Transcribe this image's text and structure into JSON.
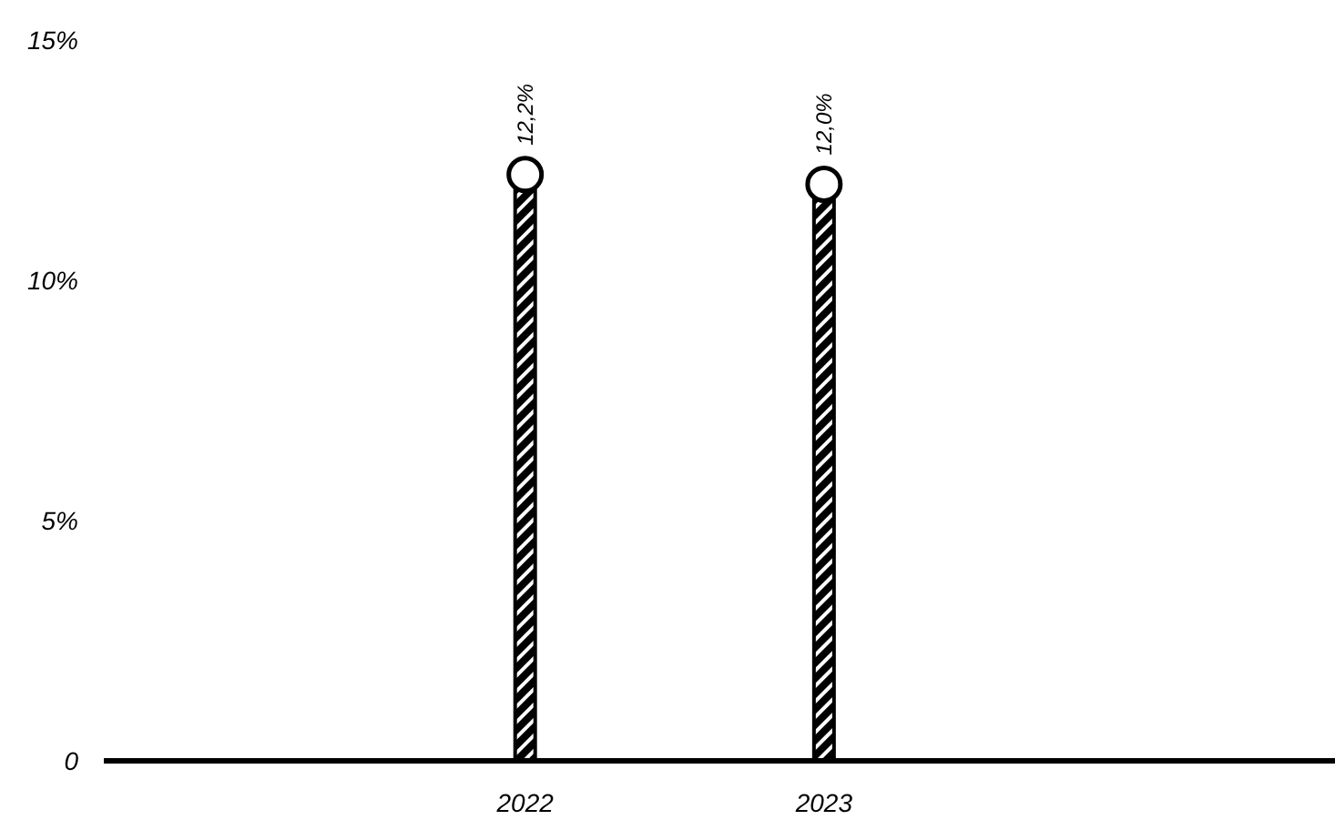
{
  "chart_data": {
    "type": "lollipop",
    "categories": [
      "2022",
      "2023"
    ],
    "series": [
      {
        "color": "#000000",
        "values": [
          12.2,
          12.0
        ],
        "value_labels": [
          "12,2%",
          "12,0%"
        ]
      }
    ],
    "ylim": [
      0,
      15
    ],
    "yticks": [
      0,
      {
        "value": 5,
        "label": "5%"
      },
      {
        "value": 10,
        "label": "10%"
      },
      {
        "value": 15,
        "label": "15%"
      }
    ],
    "grid": false,
    "marker": "circle"
  }
}
